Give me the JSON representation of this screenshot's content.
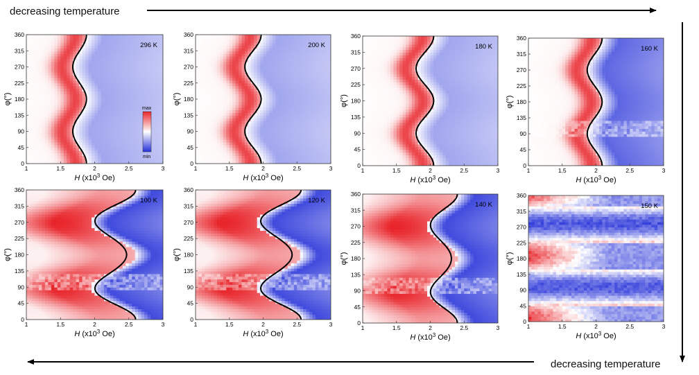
{
  "banner_top": "decreasing temperature",
  "banner_bottom": "decreasing temperature",
  "colorbar": {
    "max_label": "max",
    "min_label": "min",
    "max_color": "#e8242a",
    "mid_color": "#ffffff",
    "min_color": "#2430d8"
  },
  "chart_data": [
    {
      "type": "heatmap",
      "title": "296 K",
      "xlabel": "H (x10^3 Oe)",
      "ylabel": "φ(°)",
      "xlim": [
        1,
        3
      ],
      "ylim": [
        0,
        360
      ],
      "xticks": [
        "1",
        "1.5",
        "2",
        "2.5",
        "3"
      ],
      "yticks": [
        "0",
        "45",
        "90",
        "135",
        "180",
        "225",
        "270",
        "315",
        "360"
      ],
      "boundary": {
        "center": 1.78,
        "amplitude": 0.1,
        "period_deg": 180,
        "phase_deg": 0
      }
    },
    {
      "type": "heatmap",
      "title": "200 K",
      "xlabel": "H (x10^3 Oe)",
      "ylabel": "φ(°)",
      "xlim": [
        1,
        3
      ],
      "ylim": [
        0,
        360
      ],
      "xticks": [
        "1",
        "1.5",
        "2",
        "2.5",
        "3"
      ],
      "yticks": [
        "0",
        "45",
        "90",
        "135",
        "180",
        "225",
        "270",
        "315",
        "360"
      ],
      "boundary": {
        "center": 1.85,
        "amplitude": 0.12,
        "period_deg": 180,
        "phase_deg": 0
      }
    },
    {
      "type": "heatmap",
      "title": "180 K",
      "xlabel": "H (x10^3 Oe)",
      "ylabel": "φ(°)",
      "xlim": [
        1,
        3
      ],
      "ylim": [
        0,
        360
      ],
      "xticks": [
        "1",
        "1.5",
        "2",
        "2.5",
        "3"
      ],
      "yticks": [
        "0",
        "45",
        "90",
        "135",
        "180",
        "225",
        "270",
        "315",
        "360"
      ],
      "boundary": {
        "center": 1.92,
        "amplitude": 0.13,
        "period_deg": 180,
        "phase_deg": 0
      }
    },
    {
      "type": "heatmap",
      "title": "160 K",
      "xlabel": "H (x10^3 Oe)",
      "ylabel": "φ(°)",
      "xlim": [
        1,
        3
      ],
      "ylim": [
        0,
        360
      ],
      "xticks": [
        "1",
        "1.5",
        "2",
        "2.5",
        "3"
      ],
      "yticks": [
        "0",
        "45",
        "90",
        "135",
        "180",
        "225",
        "270",
        "315",
        "360"
      ],
      "boundary": {
        "center": 1.98,
        "amplitude": 0.11,
        "period_deg": 180,
        "phase_deg": 0
      }
    },
    {
      "type": "heatmap",
      "title": "100 K",
      "xlabel": "H (x10^3 Oe)",
      "ylabel": "φ(°)",
      "xlim": [
        1,
        3
      ],
      "ylim": [
        0,
        360
      ],
      "xticks": [
        "1",
        "1.5",
        "2",
        "2.5",
        "3"
      ],
      "yticks": [
        "0",
        "45",
        "90",
        "135",
        "180",
        "225",
        "270",
        "315",
        "360"
      ],
      "boundary": {
        "center": 2.27,
        "amplitude": 0.33,
        "period_deg": 180,
        "phase_deg": 0
      }
    },
    {
      "type": "heatmap",
      "title": "120 K",
      "xlabel": "H (x10^3 Oe)",
      "ylabel": "φ(°)",
      "xlim": [
        1,
        3
      ],
      "ylim": [
        0,
        360
      ],
      "xticks": [
        "1",
        "1.5",
        "2",
        "2.5",
        "3"
      ],
      "yticks": [
        "0",
        "45",
        "90",
        "135",
        "180",
        "225",
        "270",
        "315",
        "360"
      ],
      "boundary": {
        "center": 2.23,
        "amplitude": 0.33,
        "period_deg": 180,
        "phase_deg": 0
      }
    },
    {
      "type": "heatmap",
      "title": "140 K",
      "xlabel": "H (x10^3 Oe)",
      "ylabel": "φ(°)",
      "xlim": [
        1,
        3
      ],
      "ylim": [
        0,
        360
      ],
      "xticks": [
        "1",
        "1.5",
        "2",
        "2.5",
        "3"
      ],
      "yticks": [
        "0",
        "45",
        "90",
        "135",
        "180",
        "225",
        "270",
        "315",
        "360"
      ],
      "boundary": {
        "center": 2.18,
        "amplitude": 0.22,
        "period_deg": 180,
        "phase_deg": 0
      }
    },
    {
      "type": "heatmap",
      "title": "150 K",
      "xlabel": "H (x10^3 Oe)",
      "ylabel": "φ(°)",
      "xlim": [
        1,
        3
      ],
      "ylim": [
        0,
        360
      ],
      "xticks": [
        "1",
        "1.5",
        "2",
        "2.5",
        "3"
      ],
      "yticks": [
        "0",
        "45",
        "90",
        "135",
        "180",
        "225",
        "270",
        "315",
        "360"
      ],
      "boundary": null
    }
  ]
}
